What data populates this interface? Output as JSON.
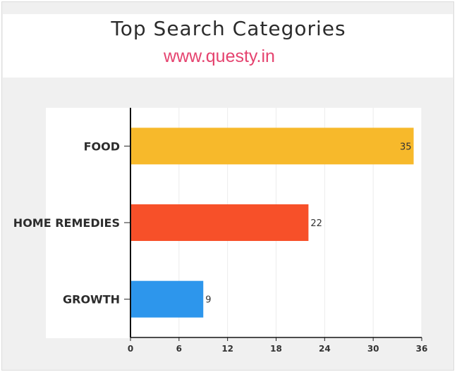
{
  "header": {
    "title": "Top Search Categories",
    "subtitle": "www.questy.in"
  },
  "chart_data": {
    "type": "bar",
    "orientation": "horizontal",
    "title": "Top Search Categories",
    "subtitle": "www.questy.in",
    "categories": [
      "FOOD",
      "HOME REMEDIES",
      "GROWTH"
    ],
    "values": [
      35,
      22,
      9
    ],
    "colors": [
      "#f7b92b",
      "#f75029",
      "#2d96ec"
    ],
    "xlim": [
      0,
      36
    ],
    "xticks": [
      "0",
      "6",
      "12",
      "18",
      "24",
      "30",
      "36"
    ],
    "data_labels": [
      "35",
      "22",
      "9"
    ],
    "grid": true,
    "xlabel": "",
    "ylabel": ""
  }
}
